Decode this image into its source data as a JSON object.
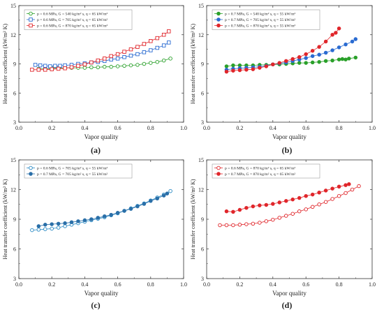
{
  "panels": [
    {
      "letter": "(a)"
    },
    {
      "letter": "(b)"
    },
    {
      "letter": "(c)"
    },
    {
      "letter": "(d)"
    }
  ],
  "chart_data": [
    {
      "type": "scatter",
      "panel": "(a)",
      "xlabel": "Vapor quality",
      "ylabel": "Heat transfer coefficient (kW/m² K)",
      "xlim": [
        0.0,
        1.0
      ],
      "ylim": [
        3,
        15
      ],
      "xticks": [
        0.0,
        0.2,
        0.4,
        0.6,
        0.8,
        1.0
      ],
      "yticks": [
        3,
        6,
        9,
        12,
        15
      ],
      "grid": false,
      "legend_position": "top-left",
      "series": [
        {
          "name": "p = 0.6 MPa, G = 540 kg/m² s, q = 65 kW/m²",
          "color": "#2aa02a",
          "marker": "open-circle",
          "line": true,
          "x": [
            0.12,
            0.16,
            0.2,
            0.24,
            0.28,
            0.32,
            0.36,
            0.4,
            0.44,
            0.48,
            0.52,
            0.56,
            0.6,
            0.64,
            0.68,
            0.72,
            0.76,
            0.8,
            0.84,
            0.88,
            0.92
          ],
          "y": [
            8.5,
            8.5,
            8.55,
            8.55,
            8.6,
            8.6,
            8.6,
            8.6,
            8.65,
            8.65,
            8.7,
            8.7,
            8.75,
            8.8,
            8.85,
            8.9,
            9.0,
            9.1,
            9.2,
            9.35,
            9.55
          ]
        },
        {
          "name": "p = 0.6 MPa, G = 705 kg/m² s, q = 65 kW/m²",
          "color": "#2a6bd1",
          "marker": "open-square",
          "line": true,
          "x": [
            0.1,
            0.13,
            0.16,
            0.19,
            0.22,
            0.25,
            0.28,
            0.32,
            0.36,
            0.4,
            0.44,
            0.48,
            0.52,
            0.56,
            0.6,
            0.64,
            0.68,
            0.72,
            0.76,
            0.8,
            0.84,
            0.88,
            0.91
          ],
          "y": [
            8.9,
            8.85,
            8.8,
            8.75,
            8.8,
            8.8,
            8.85,
            8.9,
            9.0,
            9.05,
            9.15,
            9.2,
            9.3,
            9.45,
            9.55,
            9.7,
            9.85,
            10.0,
            10.2,
            10.4,
            10.65,
            10.9,
            11.2
          ]
        },
        {
          "name": "p = 0.6 MPa, G = 870 kg/m² s, q = 65 kW/m²",
          "color": "#e0262b",
          "marker": "open-square",
          "line": true,
          "x": [
            0.08,
            0.12,
            0.16,
            0.2,
            0.24,
            0.28,
            0.32,
            0.36,
            0.4,
            0.44,
            0.48,
            0.52,
            0.56,
            0.6,
            0.64,
            0.68,
            0.72,
            0.76,
            0.8,
            0.84,
            0.88,
            0.91
          ],
          "y": [
            8.4,
            8.4,
            8.4,
            8.45,
            8.5,
            8.55,
            8.65,
            8.8,
            8.95,
            9.15,
            9.35,
            9.55,
            9.8,
            10.0,
            10.25,
            10.5,
            10.75,
            11.05,
            11.35,
            11.65,
            12.0,
            12.35
          ]
        }
      ]
    },
    {
      "type": "scatter",
      "panel": "(b)",
      "xlabel": "Vapor quality",
      "ylabel": "Heat transfer coefficient (kW/m² K)",
      "xlim": [
        0.0,
        1.0
      ],
      "ylim": [
        3,
        15
      ],
      "xticks": [
        0.0,
        0.2,
        0.4,
        0.6,
        0.8,
        1.0
      ],
      "yticks": [
        3,
        6,
        9,
        12,
        15
      ],
      "grid": false,
      "legend_position": "top-left",
      "series": [
        {
          "name": "p = 0.7 MPa, G = 540 kg/m² s, q = 55 kW/m²",
          "color": "#2aa02a",
          "marker": "filled-circle",
          "line": true,
          "x": [
            0.12,
            0.16,
            0.2,
            0.24,
            0.28,
            0.32,
            0.36,
            0.4,
            0.44,
            0.48,
            0.52,
            0.56,
            0.6,
            0.64,
            0.68,
            0.72,
            0.76,
            0.8,
            0.82,
            0.84,
            0.86,
            0.9
          ],
          "y": [
            8.75,
            8.85,
            8.85,
            8.85,
            8.85,
            8.9,
            8.9,
            8.95,
            8.95,
            9.0,
            9.05,
            9.1,
            9.1,
            9.15,
            9.2,
            9.3,
            9.35,
            9.45,
            9.5,
            9.45,
            9.55,
            9.65
          ]
        },
        {
          "name": "p = 0.7 MPa, G = 705 kg/m² s, q = 55 kW/m²",
          "color": "#2a6bd1",
          "marker": "filled-circle",
          "line": true,
          "x": [
            0.12,
            0.16,
            0.2,
            0.24,
            0.28,
            0.32,
            0.36,
            0.4,
            0.44,
            0.48,
            0.52,
            0.56,
            0.6,
            0.64,
            0.68,
            0.72,
            0.76,
            0.8,
            0.84,
            0.88,
            0.9
          ],
          "y": [
            8.4,
            8.5,
            8.55,
            8.6,
            8.65,
            8.7,
            8.8,
            8.95,
            9.05,
            9.15,
            9.3,
            9.45,
            9.6,
            9.8,
            9.95,
            10.15,
            10.4,
            10.7,
            11.0,
            11.3,
            11.55
          ]
        },
        {
          "name": "p = 0.7 MPa, G = 870 kg/m² s, q = 55 kW/m²",
          "color": "#e0262b",
          "marker": "filled-circle",
          "line": true,
          "x": [
            0.12,
            0.16,
            0.2,
            0.24,
            0.28,
            0.32,
            0.36,
            0.4,
            0.44,
            0.48,
            0.52,
            0.56,
            0.6,
            0.64,
            0.68,
            0.72,
            0.76,
            0.78,
            0.8
          ],
          "y": [
            8.2,
            8.3,
            8.35,
            8.4,
            8.45,
            8.6,
            8.75,
            8.95,
            9.1,
            9.3,
            9.5,
            9.7,
            10.0,
            10.35,
            10.75,
            11.3,
            12.0,
            12.2,
            12.65
          ]
        }
      ]
    },
    {
      "type": "scatter",
      "panel": "(c)",
      "xlabel": "Vapor quality",
      "ylabel": "Heat transfer coefficient (kW/m² K)",
      "xlim": [
        0.0,
        1.0
      ],
      "ylim": [
        3,
        15
      ],
      "xticks": [
        0.0,
        0.2,
        0.4,
        0.6,
        0.8,
        1.0
      ],
      "yticks": [
        3,
        6,
        9,
        12,
        15
      ],
      "grid": false,
      "legend_position": "top-left",
      "series": [
        {
          "name": "p = 0.6 MPa, G = 705 kg/m² s, q = 55 kW/m²",
          "color": "#2a8ac4",
          "marker": "open-circle",
          "line": true,
          "x": [
            0.08,
            0.12,
            0.16,
            0.2,
            0.24,
            0.28,
            0.32,
            0.36,
            0.4,
            0.44,
            0.48,
            0.52,
            0.56,
            0.6,
            0.64,
            0.68,
            0.72,
            0.76,
            0.8,
            0.84,
            0.88,
            0.92
          ],
          "y": [
            7.9,
            7.95,
            8.0,
            8.05,
            8.15,
            8.3,
            8.45,
            8.6,
            8.75,
            8.9,
            9.05,
            9.2,
            9.4,
            9.6,
            9.85,
            10.1,
            10.35,
            10.6,
            10.9,
            11.2,
            11.5,
            11.85
          ]
        },
        {
          "name": "p = 0.7 MPa, G = 705 kg/m² s, q = 55 kW/m²",
          "color": "#2a6fa8",
          "marker": "filled-circle",
          "line": true,
          "x": [
            0.12,
            0.16,
            0.2,
            0.24,
            0.28,
            0.32,
            0.36,
            0.4,
            0.44,
            0.48,
            0.52,
            0.56,
            0.6,
            0.64,
            0.68,
            0.72,
            0.76,
            0.8,
            0.84,
            0.88,
            0.9
          ],
          "y": [
            8.3,
            8.45,
            8.5,
            8.55,
            8.6,
            8.7,
            8.8,
            8.9,
            9.0,
            9.15,
            9.3,
            9.45,
            9.65,
            9.85,
            10.05,
            10.3,
            10.55,
            10.85,
            11.1,
            11.4,
            11.6
          ]
        }
      ]
    },
    {
      "type": "scatter",
      "panel": "(d)",
      "xlabel": "Vapor quality",
      "ylabel": "Heat transfer coefficient (kW/m² K)",
      "xlim": [
        0.0,
        1.0
      ],
      "ylim": [
        3,
        15
      ],
      "xticks": [
        0.0,
        0.2,
        0.4,
        0.6,
        0.8,
        1.0
      ],
      "yticks": [
        3,
        6,
        9,
        12,
        15
      ],
      "grid": false,
      "legend_position": "top-left",
      "series": [
        {
          "name": "p = 0.6 MPa, G = 870 kg/m² s, q = 65 kW/m²",
          "color": "#e0262b",
          "marker": "open-circle",
          "line": true,
          "x": [
            0.08,
            0.12,
            0.16,
            0.2,
            0.24,
            0.28,
            0.32,
            0.36,
            0.4,
            0.44,
            0.48,
            0.52,
            0.56,
            0.6,
            0.64,
            0.68,
            0.72,
            0.76,
            0.8,
            0.84,
            0.88,
            0.92
          ],
          "y": [
            8.4,
            8.4,
            8.4,
            8.45,
            8.5,
            8.55,
            8.65,
            8.8,
            8.95,
            9.15,
            9.35,
            9.55,
            9.8,
            10.0,
            10.25,
            10.5,
            10.75,
            11.05,
            11.35,
            11.65,
            12.0,
            12.35
          ]
        },
        {
          "name": "p = 0.7 MPa, G = 870 kg/m² s, q = 65 kW/m²",
          "color": "#e0262b",
          "marker": "filled-circle",
          "line": true,
          "x": [
            0.12,
            0.16,
            0.2,
            0.24,
            0.28,
            0.32,
            0.36,
            0.4,
            0.44,
            0.48,
            0.52,
            0.56,
            0.6,
            0.64,
            0.68,
            0.72,
            0.76,
            0.8,
            0.84,
            0.86
          ],
          "y": [
            9.8,
            9.75,
            9.95,
            10.15,
            10.3,
            10.4,
            10.45,
            10.55,
            10.7,
            10.85,
            11.0,
            11.15,
            11.35,
            11.5,
            11.7,
            11.9,
            12.1,
            12.3,
            12.45,
            12.55
          ]
        }
      ]
    }
  ]
}
